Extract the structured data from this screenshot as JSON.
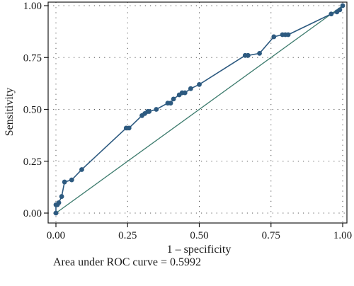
{
  "chart_data": {
    "type": "line",
    "xlabel": "1 – specificity",
    "ylabel": "Sensitivity",
    "xlim": [
      0,
      1
    ],
    "ylim": [
      0,
      1
    ],
    "x_ticks": [
      "0.00",
      "0.25",
      "0.50",
      "0.75",
      "1.00"
    ],
    "y_ticks": [
      "0.00",
      "0.25",
      "0.50",
      "0.75",
      "1.00"
    ],
    "grid": "dotted",
    "series": [
      {
        "type": "line-with-markers",
        "color": "#2d5a80",
        "x": [
          0.0,
          0.0,
          0.005,
          0.01,
          0.02,
          0.03,
          0.055,
          0.09,
          0.245,
          0.255,
          0.3,
          0.31,
          0.32,
          0.325,
          0.35,
          0.39,
          0.4,
          0.41,
          0.43,
          0.44,
          0.45,
          0.47,
          0.5,
          0.66,
          0.67,
          0.71,
          0.76,
          0.79,
          0.8,
          0.81,
          0.96,
          0.98,
          0.99,
          1.0
        ],
        "y": [
          0.0,
          0.04,
          0.04,
          0.05,
          0.08,
          0.15,
          0.16,
          0.21,
          0.41,
          0.41,
          0.47,
          0.48,
          0.49,
          0.49,
          0.5,
          0.53,
          0.53,
          0.55,
          0.57,
          0.58,
          0.58,
          0.6,
          0.62,
          0.76,
          0.76,
          0.77,
          0.85,
          0.86,
          0.86,
          0.86,
          0.96,
          0.97,
          0.98,
          1.0
        ]
      },
      {
        "type": "reference-line",
        "color": "#3c7b6d",
        "x": [
          0,
          1
        ],
        "y": [
          0,
          1
        ]
      }
    ],
    "annotation": "Area under ROC curve = 0.5992"
  }
}
